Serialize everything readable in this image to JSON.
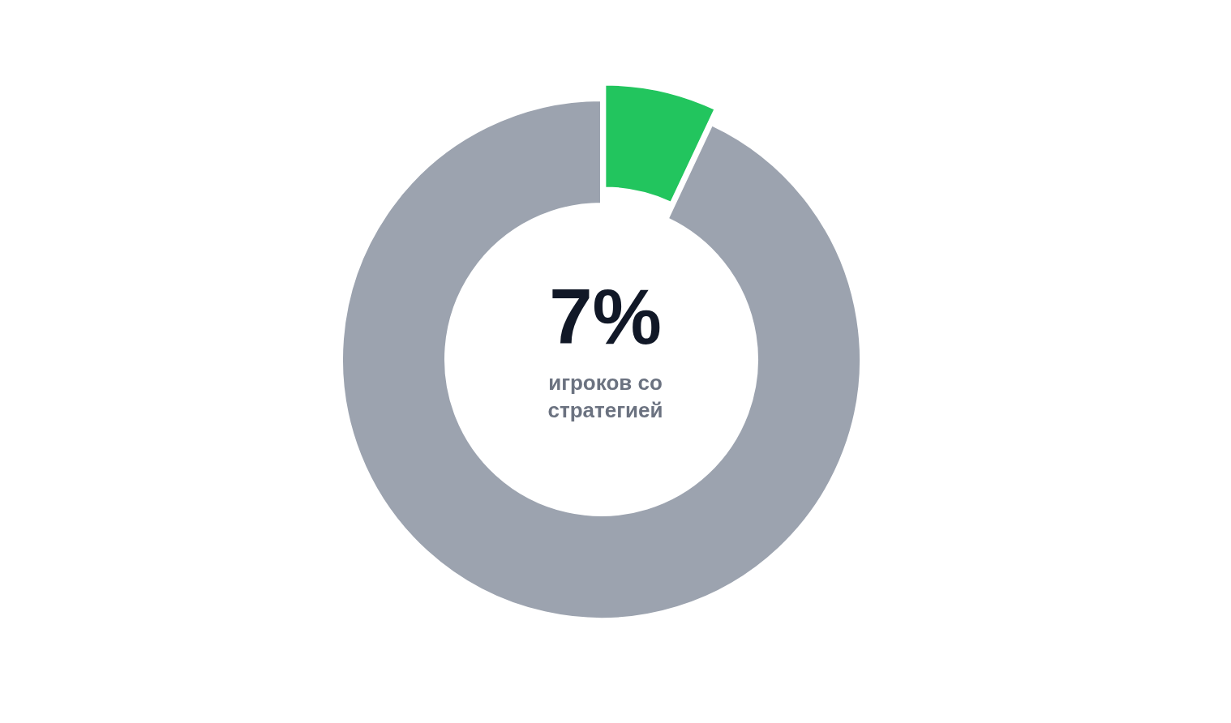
{
  "chart_data": {
    "type": "donut",
    "categories": [
      null,
      null
    ],
    "values": [
      7,
      93
    ],
    "colors": [
      "#22c55e",
      "#9ca3af"
    ],
    "annotations": [
      "7%",
      "игроков со стратегией"
    ]
  }
}
